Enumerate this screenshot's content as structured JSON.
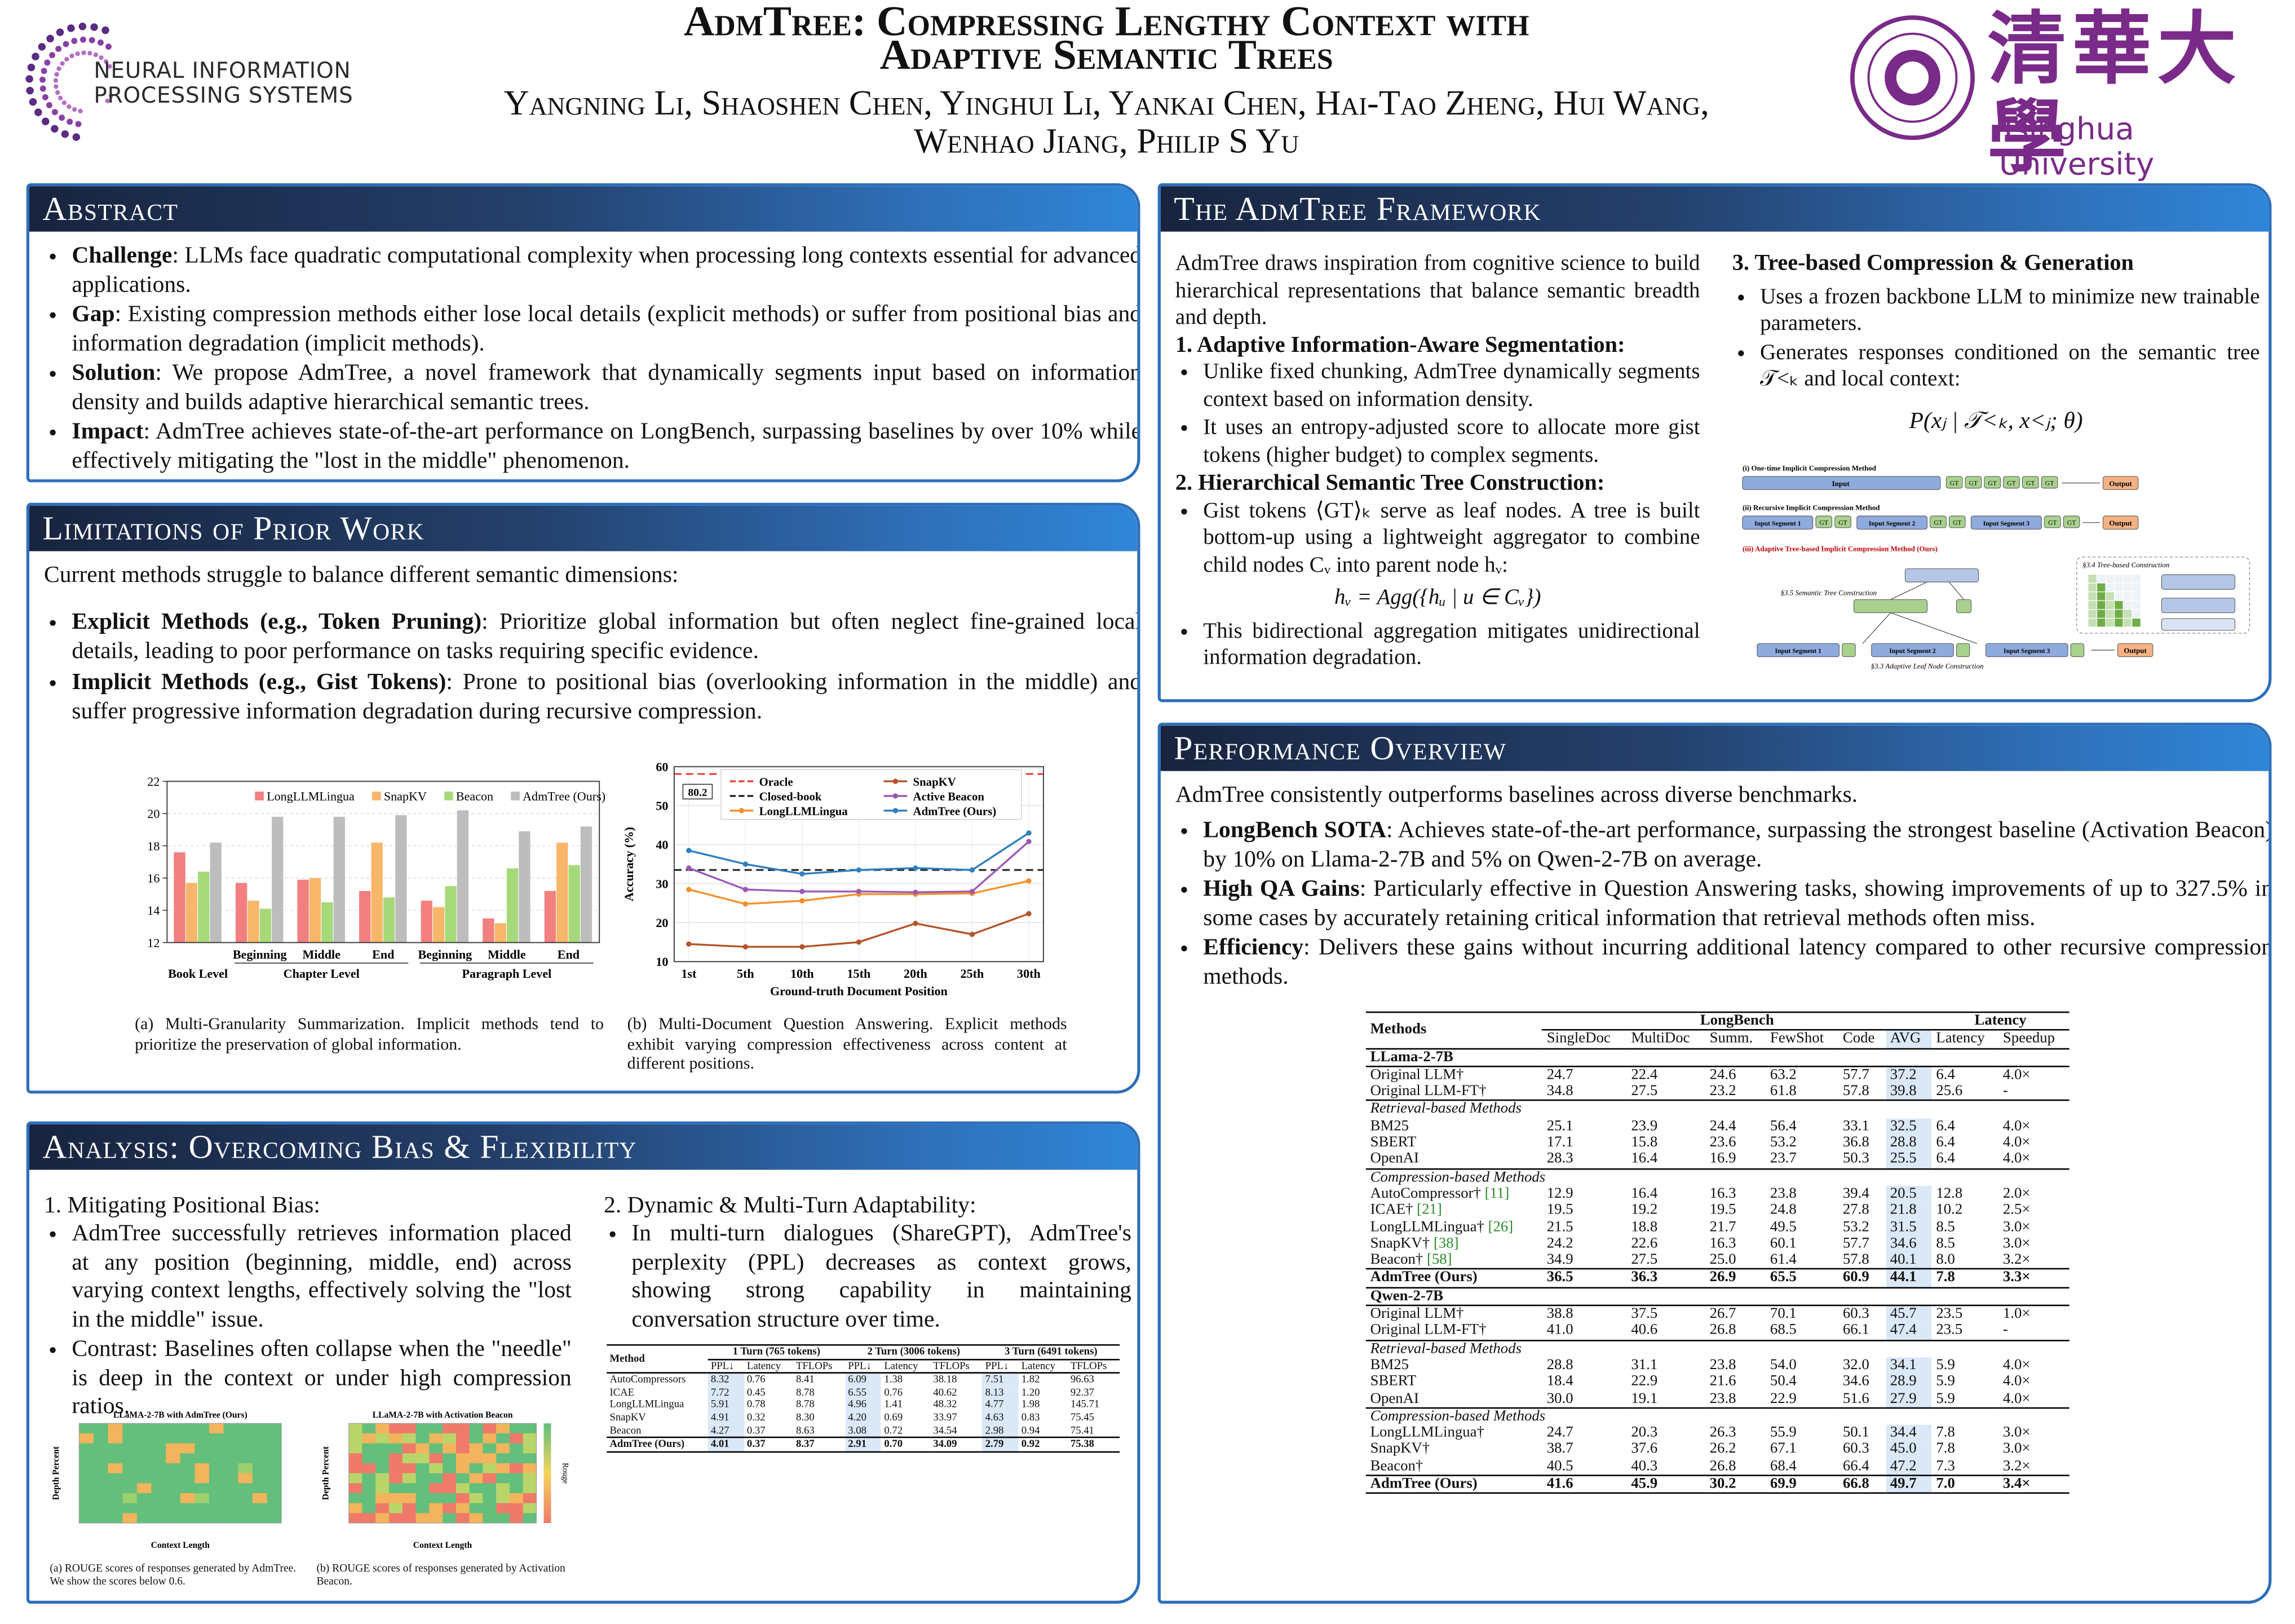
{
  "header": {
    "logo_left_line1": "NEURAL INFORMATION",
    "logo_left_line2": "PROCESSING SYSTEMS",
    "title_line1": "AdmTree: Compressing Lengthy Context with",
    "title_line2": "Adaptive Semantic Trees",
    "authors_line1": "Yangning Li, Shaoshen Chen, Yinghui Li, Yankai Chen, Hai-Tao Zheng, Hui Wang,",
    "authors_line2": "Wenhao Jiang, Philip S Yu",
    "logo_right_chinese": "清華大學",
    "logo_right": "Tsinghua University"
  },
  "abstract": {
    "title": "Abstract",
    "items": [
      {
        "label": "Challenge",
        "text": ": LLMs face quadratic computational complexity when processing long contexts essential for advanced applications."
      },
      {
        "label": "Gap",
        "text": ": Existing compression methods either lose local details (explicit methods) or suffer from positional bias and information degradation (implicit methods)."
      },
      {
        "label": "Solution",
        "text": ": We propose AdmTree, a novel framework that dynamically segments input based on information density and builds adaptive hierarchical semantic trees."
      },
      {
        "label": "Impact",
        "text": ": AdmTree achieves state-of-the-art performance on LongBench, surpassing baselines by over 10% while effectively mitigating the \"lost in the middle\" phenomenon."
      }
    ]
  },
  "limitations": {
    "title": "Limitations of Prior Work",
    "intro": "Current methods struggle to balance different semantic dimensions:",
    "items": [
      {
        "label": "Explicit Methods (e.g., Token Pruning)",
        "text": ": Prioritize global information but often neglect fine-grained local details, leading to poor performance on tasks requiring specific evidence."
      },
      {
        "label": "Implicit Methods (e.g., Gist Tokens)",
        "text": ": Prone to positional bias (overlooking information in the middle) and suffer progressive information degradation during recursive compression."
      }
    ],
    "caption_a": "(a) Multi-Granularity Summarization. Implicit methods tend to prioritize the preservation of global information.",
    "caption_b": "(b) Multi-Document Question Answering. Explicit methods exhibit varying compression effectiveness across content at different positions."
  },
  "analysis": {
    "title": "Analysis: Overcoming Bias & Flexibility",
    "sub1": "1. Mitigating Positional Bias:",
    "sub1_items": [
      "AdmTree successfully retrieves information placed at any position (beginning, middle, end) across varying context lengths, effectively solving the \"lost in the middle\" issue.",
      "Contrast: Baselines often collapse when the \"needle\" is deep in the context or under high compression ratios."
    ],
    "sub2": "2. Dynamic & Multi-Turn Adaptability:",
    "sub2_items": [
      "In multi-turn dialogues (ShareGPT), AdmTree's perplexity (PPL) decreases as context grows, showing strong capability in maintaining conversation structure over time."
    ],
    "heatmaps": [
      {
        "title": "LLaMA-2-7B with AdmTree (Ours)",
        "x_label": "Context Length",
        "y_label": "Depth Percent",
        "caption": "(a) ROUGE scores of responses generated by AdmTree. We show the scores below 0.6."
      },
      {
        "title": "LLaMA-2-7B with Activation Beacon",
        "x_label": "Context Length",
        "y_label": "Depth Percent",
        "colorbar_label": "Rouge",
        "caption": "(b) ROUGE scores of responses generated by Activation Beacon."
      }
    ],
    "sharegpt_table": {
      "method_header": "Method",
      "turns": [
        "1 Turn (765 tokens)",
        "2 Turn (3006 tokens)",
        "3 Turn (6491 tokens)"
      ],
      "subcolumns": [
        "PPL↓",
        "Latency",
        "TFLOPs"
      ],
      "rows": [
        [
          "AutoCompressors",
          "8.32",
          "0.76",
          "8.41",
          "6.09",
          "1.38",
          "38.18",
          "7.51",
          "1.82",
          "96.63"
        ],
        [
          "ICAE",
          "7.72",
          "0.45",
          "8.78",
          "6.55",
          "0.76",
          "40.62",
          "8.13",
          "1.20",
          "92.37"
        ],
        [
          "LongLLMLingua",
          "5.91",
          "0.78",
          "8.78",
          "4.96",
          "1.41",
          "48.32",
          "4.77",
          "1.98",
          "145.71"
        ],
        [
          "SnapKV",
          "4.91",
          "0.32",
          "8.30",
          "4.20",
          "0.69",
          "33.97",
          "4.63",
          "0.83",
          "75.45"
        ],
        [
          "Beacon",
          "4.27",
          "0.37",
          "8.63",
          "3.08",
          "0.72",
          "34.54",
          "2.98",
          "0.94",
          "75.41"
        ],
        [
          "AdmTree (Ours)",
          "4.01",
          "0.37",
          "8.37",
          "2.91",
          "0.70",
          "34.09",
          "2.79",
          "0.92",
          "75.38"
        ]
      ]
    }
  },
  "framework": {
    "title": "The AdmTree Framework",
    "intro": "AdmTree draws inspiration from cognitive science to build hierarchical representations that balance semantic breadth and depth.",
    "step1": {
      "heading": "1. Adaptive Information-Aware Segmentation:",
      "items": [
        "Unlike fixed chunking, AdmTree dynamically segments context based on information density.",
        "It uses an entropy-adjusted score to allocate more gist tokens (higher budget) to complex segments."
      ]
    },
    "step2": {
      "heading": "2. Hierarchical Semantic Tree Construction:",
      "items": [
        "Gist tokens ⟨GT⟩ₖ serve as leaf nodes. A tree is built bottom-up using a lightweight aggregator to combine child nodes Cᵥ into parent node hᵥ:"
      ],
      "formula": "hᵥ = Agg({hᵤ | u ∈ Cᵥ})",
      "items_after": [
        "This bidirectional aggregation mitigates unidirectional information degradation."
      ]
    },
    "step3": {
      "heading": "3. Tree-based Compression & Generation",
      "items": [
        "Uses a frozen backbone LLM to minimize new trainable parameters.",
        "Generates responses conditioned on the semantic tree 𝒯<ₖ and local context:"
      ],
      "formula": "P(xⱼ | 𝒯<ₖ, x<ⱼ; θ)"
    },
    "diagram": {
      "row1_title": "(i) One-time Implicit Compression Method",
      "row2_title": "(ii) Recursive Implicit Compression Method",
      "row3_title": "(iii) Adaptive Tree-based Implicit Compression Method (Ours)",
      "input": "Input",
      "output": "Output",
      "gt": "GT",
      "segments": [
        "Input Segment 1",
        "Input Segment 2",
        "Input Segment 3"
      ],
      "tree_construction": "§3.5 Semantic Tree Construction",
      "tree_based": "§3.4 Tree-based Construction",
      "leaf_construction": "§3.3 Adaptive Leaf Node Construction"
    }
  },
  "performance": {
    "title": "Performance Overview",
    "intro": "AdmTree consistently outperforms baselines across diverse benchmarks.",
    "items": [
      {
        "label": "LongBench SOTA",
        "text": ": Achieves state-of-the-art performance, surpassing the strongest baseline (Activation Beacon) by 10% on Llama-2-7B and 5% on Qwen-2-7B on average."
      },
      {
        "label": "High QA Gains",
        "text": ": Particularly effective in Question Answering tasks, showing improvements of up to 327.5% in some cases by accurately retaining critical information that retrieval methods often miss."
      },
      {
        "label": "Efficiency",
        "text": ": Delivers these gains without incurring additional latency compared to other recursive compression methods."
      }
    ],
    "table": {
      "groups": [
        "LongBench",
        "Latency"
      ],
      "columns": [
        "Methods",
        "SingleDoc",
        "MultiDoc",
        "Summ.",
        "FewShot",
        "Code",
        "AVG",
        "Latency",
        "Speedup"
      ],
      "blocks": [
        {
          "model": "LLama-2-7B",
          "sections": [
            {
              "rows": [
                [
                  "Original LLM†",
                  "24.7",
                  "22.4",
                  "24.6",
                  "63.2",
                  "57.7",
                  "37.2",
                  "6.4",
                  "4.0×"
                ],
                [
                  "Original LLM-FT†",
                  "34.8",
                  "27.5",
                  "23.2",
                  "61.8",
                  "57.8",
                  "39.8",
                  "25.6",
                  "-"
                ]
              ]
            },
            {
              "label": "Retrieval-based Methods",
              "rows": [
                [
                  "BM25",
                  "25.1",
                  "23.9",
                  "24.4",
                  "56.4",
                  "33.1",
                  "32.5",
                  "6.4",
                  "4.0×"
                ],
                [
                  "SBERT",
                  "17.1",
                  "15.8",
                  "23.6",
                  "53.2",
                  "36.8",
                  "28.8",
                  "6.4",
                  "4.0×"
                ],
                [
                  "OpenAI",
                  "28.3",
                  "16.4",
                  "16.9",
                  "23.7",
                  "50.3",
                  "25.5",
                  "6.4",
                  "4.0×"
                ]
              ]
            },
            {
              "label": "Compression-based Methods",
              "rows": [
                [
                  "AutoCompressor† [11]",
                  "12.9",
                  "16.4",
                  "16.3",
                  "23.8",
                  "39.4",
                  "20.5",
                  "12.8",
                  "2.0×"
                ],
                [
                  "ICAE† [21]",
                  "19.5",
                  "19.2",
                  "19.5",
                  "24.8",
                  "27.8",
                  "21.8",
                  "10.2",
                  "2.5×"
                ],
                [
                  "LongLLMLingua† [26]",
                  "21.5",
                  "18.8",
                  "21.7",
                  "49.5",
                  "53.2",
                  "31.5",
                  "8.5",
                  "3.0×"
                ],
                [
                  "SnapKV† [38]",
                  "24.2",
                  "22.6",
                  "16.3",
                  "60.1",
                  "57.7",
                  "34.6",
                  "8.5",
                  "3.0×"
                ],
                [
                  "Beacon† [58]",
                  "34.9",
                  "27.5",
                  "25.0",
                  "61.4",
                  "57.8",
                  "40.1",
                  "8.0",
                  "3.2×"
                ],
                [
                  "AdmTree (Ours)",
                  "36.5",
                  "36.3",
                  "26.9",
                  "65.5",
                  "60.9",
                  "44.1",
                  "7.8",
                  "3.3×"
                ]
              ]
            }
          ]
        },
        {
          "model": "Qwen-2-7B",
          "sections": [
            {
              "rows": [
                [
                  "Original LLM†",
                  "38.8",
                  "37.5",
                  "26.7",
                  "70.1",
                  "60.3",
                  "45.7",
                  "23.5",
                  "1.0×"
                ],
                [
                  "Original LLM-FT†",
                  "41.0",
                  "40.6",
                  "26.8",
                  "68.5",
                  "66.1",
                  "47.4",
                  "23.5",
                  "-"
                ]
              ]
            },
            {
              "label": "Retrieval-based Methods",
              "rows": [
                [
                  "BM25",
                  "28.8",
                  "31.1",
                  "23.8",
                  "54.0",
                  "32.0",
                  "34.1",
                  "5.9",
                  "4.0×"
                ],
                [
                  "SBERT",
                  "18.4",
                  "22.9",
                  "21.6",
                  "50.4",
                  "34.6",
                  "28.9",
                  "5.9",
                  "4.0×"
                ],
                [
                  "OpenAI",
                  "30.0",
                  "19.1",
                  "23.8",
                  "22.9",
                  "51.6",
                  "27.9",
                  "5.9",
                  "4.0×"
                ]
              ]
            },
            {
              "label": "Compression-based Methods",
              "rows": [
                [
                  "LongLLMLingua†",
                  "24.7",
                  "20.3",
                  "26.3",
                  "55.9",
                  "50.1",
                  "34.4",
                  "7.8",
                  "3.0×"
                ],
                [
                  "SnapKV†",
                  "38.7",
                  "37.6",
                  "26.2",
                  "67.1",
                  "60.3",
                  "45.0",
                  "7.8",
                  "3.0×"
                ],
                [
                  "Beacon†",
                  "40.5",
                  "40.3",
                  "26.8",
                  "68.4",
                  "66.4",
                  "47.2",
                  "7.3",
                  "3.2×"
                ],
                [
                  "AdmTree (Ours)",
                  "41.6",
                  "45.9",
                  "30.2",
                  "69.9",
                  "66.8",
                  "49.7",
                  "7.0",
                  "3.4×"
                ]
              ]
            }
          ]
        }
      ]
    }
  },
  "chart_data": [
    {
      "type": "bar",
      "categories": [
        "Book Level",
        "Beginning",
        "Middle",
        "End",
        "Beginning",
        "Middle",
        "End"
      ],
      "group_labels": [
        "Chapter Level",
        "Paragraph Level"
      ],
      "series": [
        {
          "name": "LongLLMLingua",
          "color": "#f28080",
          "values": [
            17.6,
            15.7,
            15.9,
            15.2,
            14.6,
            13.5,
            15.2
          ]
        },
        {
          "name": "SnapKV",
          "color": "#f7b66a",
          "values": [
            15.7,
            14.6,
            16.0,
            18.2,
            14.2,
            13.2,
            18.2
          ]
        },
        {
          "name": "Beacon",
          "color": "#a6d97a",
          "values": [
            16.4,
            14.1,
            14.5,
            14.8,
            15.5,
            16.6,
            16.8
          ]
        },
        {
          "name": "AdmTree (Ours)",
          "color": "#bdbdbd",
          "values": [
            18.2,
            19.8,
            19.8,
            19.9,
            20.2,
            18.9,
            19.2
          ]
        }
      ],
      "ylim": [
        12,
        22
      ],
      "yticks": [
        12,
        14,
        16,
        18,
        20,
        22
      ],
      "grid": true,
      "legend": "top"
    },
    {
      "type": "line",
      "categories": [
        "1st",
        "5th",
        "10th",
        "15th",
        "20th",
        "25th",
        "30th"
      ],
      "x_label": "Ground-truth Document Position",
      "y_label": "Accuracy (%)",
      "reference_lines": [
        {
          "name": "Oracle",
          "color": "#e8453c",
          "value": 80.2
        },
        {
          "name": "Closed-book",
          "color": "#222222",
          "value": 33.5
        }
      ],
      "series": [
        {
          "name": "LongLLMLingua",
          "color": "#f5902a",
          "values": [
            28.5,
            24.8,
            25.6,
            27.3,
            27.3,
            27.5,
            30.7
          ]
        },
        {
          "name": "SnapKV",
          "color": "#b5542a",
          "values": [
            14.5,
            13.8,
            13.8,
            15.0,
            19.8,
            17.0,
            22.3
          ]
        },
        {
          "name": "Active Beacon",
          "color": "#9b59b6",
          "values": [
            34.0,
            28.5,
            28.0,
            28.0,
            27.8,
            28.0,
            40.8
          ]
        },
        {
          "name": "AdmTree (Ours)",
          "color": "#2f7fc1",
          "values": [
            38.5,
            35.0,
            32.5,
            33.5,
            34.0,
            33.5,
            43.0
          ]
        }
      ],
      "ylim": [
        10,
        60
      ],
      "yticks": [
        10,
        20,
        30,
        40,
        50,
        60
      ],
      "grid": true,
      "legend": "top"
    }
  ]
}
